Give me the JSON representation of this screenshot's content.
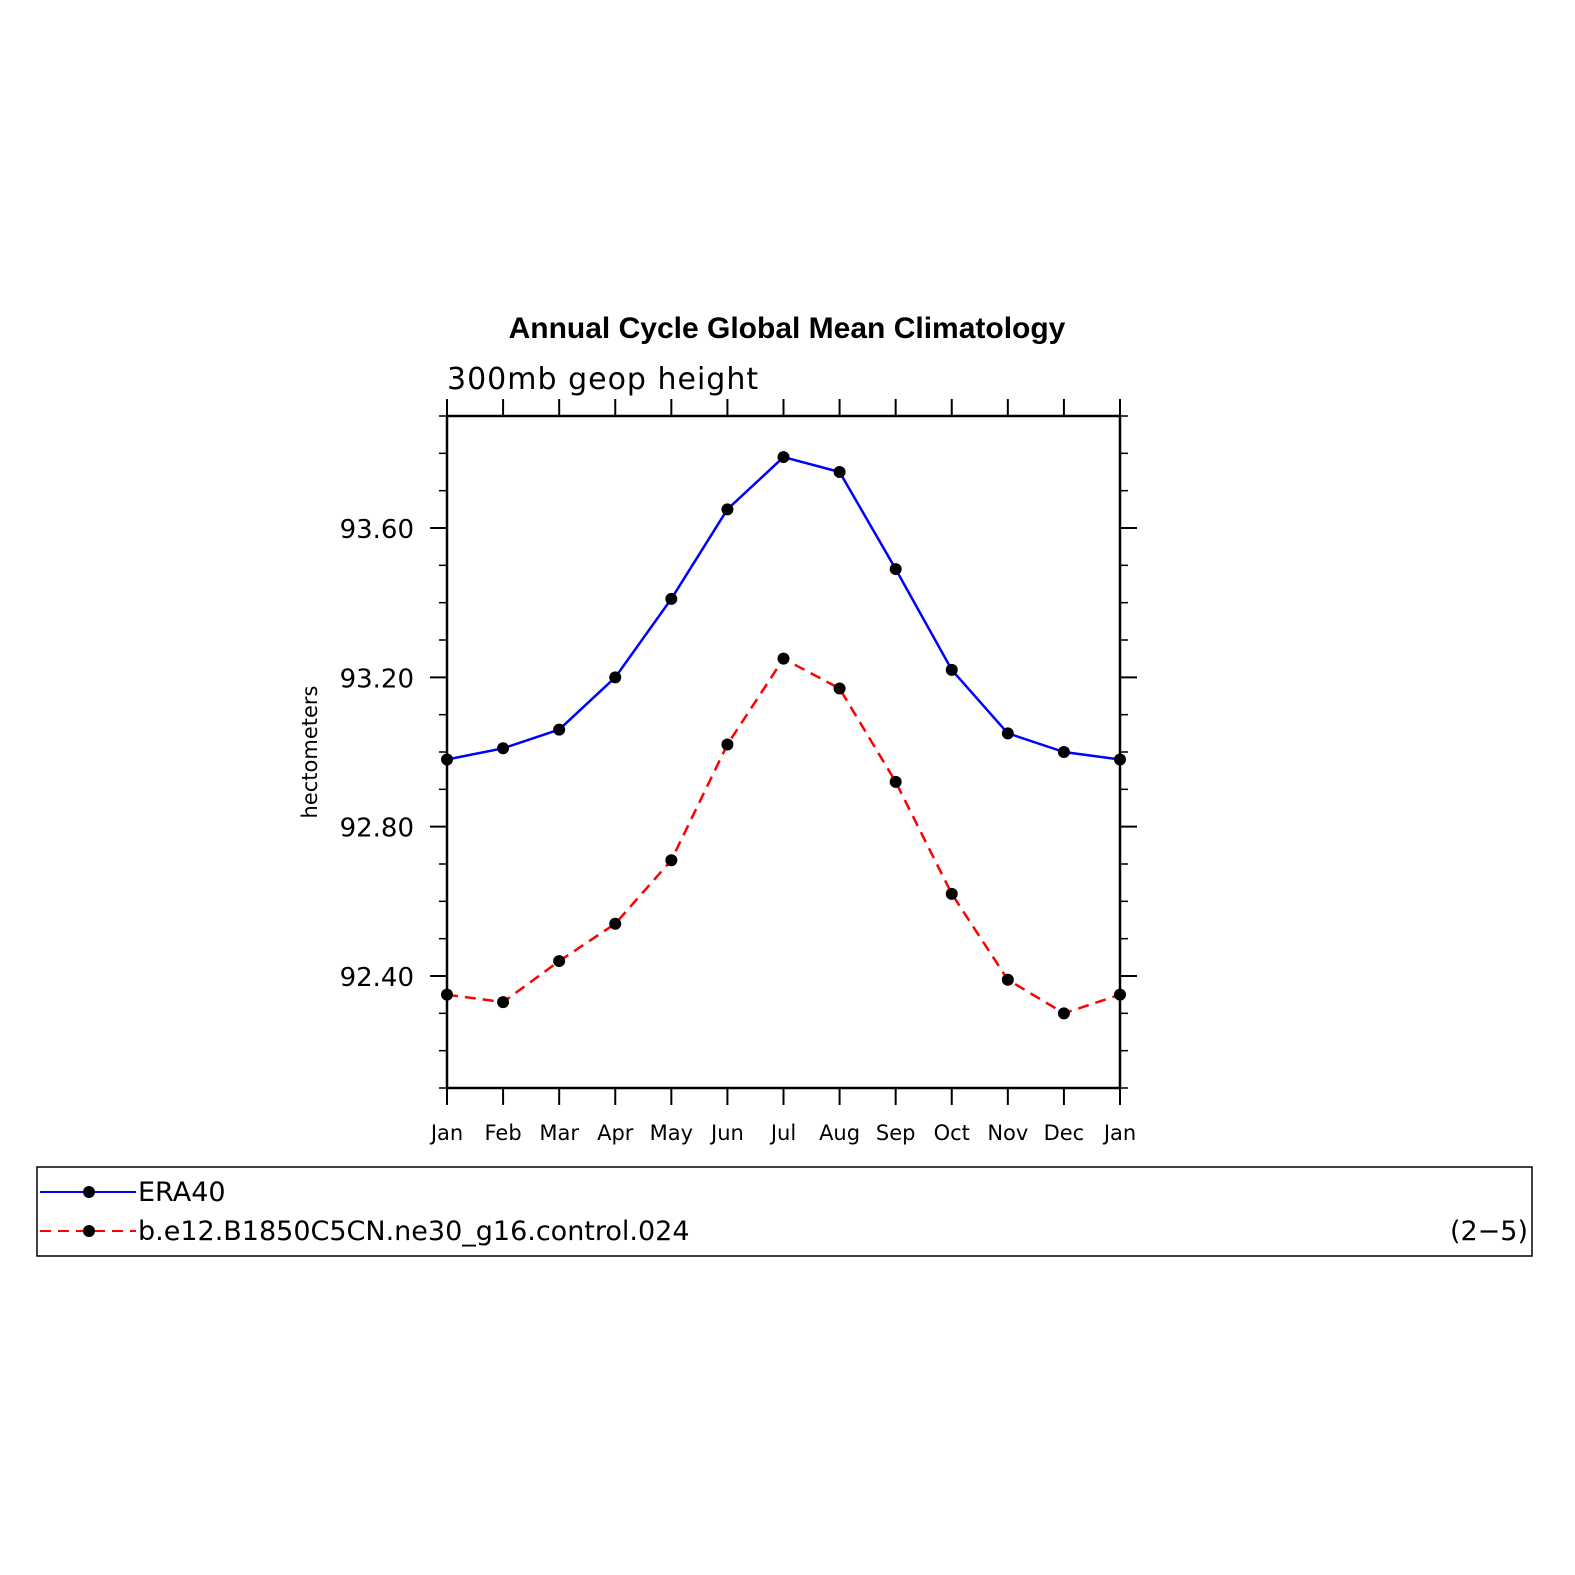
{
  "chart_data": {
    "type": "line",
    "title": "Annual Cycle Global Mean Climatology",
    "subtitle": "300mb geop height",
    "ylabel": "hectometers",
    "categories": [
      "Jan",
      "Feb",
      "Mar",
      "Apr",
      "May",
      "Jun",
      "Jul",
      "Aug",
      "Sep",
      "Oct",
      "Nov",
      "Dec",
      "Jan"
    ],
    "ylim": [
      92.1,
      93.9
    ],
    "yticks": [
      92.4,
      92.8,
      93.2,
      93.6
    ],
    "ytick_labels": [
      "92.40",
      "92.80",
      "93.20",
      "93.60"
    ],
    "series": [
      {
        "name": "ERA40",
        "color": "#0000ff",
        "style": "solid",
        "values": [
          92.98,
          93.01,
          93.06,
          93.2,
          93.41,
          93.65,
          93.79,
          93.75,
          93.49,
          93.22,
          93.05,
          93.0,
          92.98
        ]
      },
      {
        "name": "b.e12.B1850C5CN.ne30_g16.control.024",
        "color": "#ff0000",
        "style": "dashed",
        "values": [
          92.35,
          92.33,
          92.44,
          92.54,
          92.71,
          93.02,
          93.25,
          93.17,
          92.92,
          92.62,
          92.39,
          92.3,
          92.35
        ]
      }
    ],
    "grid": false,
    "legend_position": "bottom",
    "panel_label": "(2−5)"
  }
}
